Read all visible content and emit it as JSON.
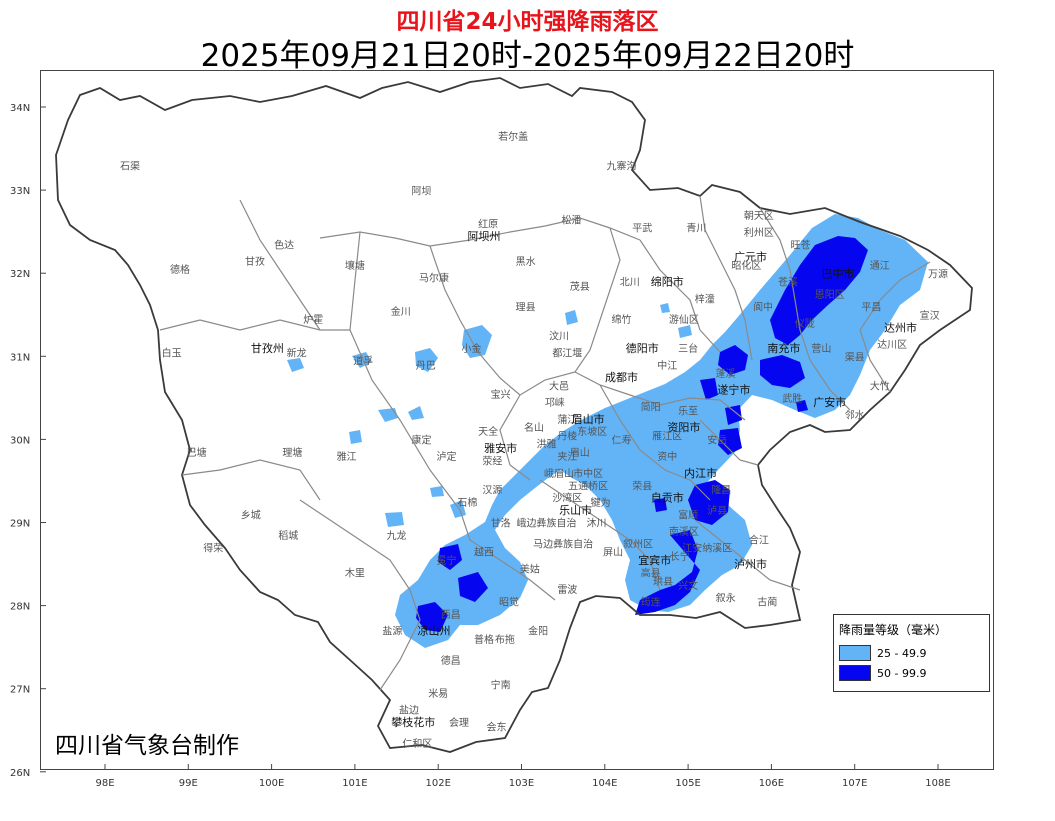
{
  "title": "四川省24小时强降雨落区",
  "period": "2025年09月21日20时-2025年09月22日20时",
  "producer": "四川省气象台制作",
  "colors": {
    "title": "#e8141c",
    "rain_25_49": "#63b4f7",
    "rain_50_99": "#0505ef",
    "boundary_province": "#3a3a3a",
    "boundary_county": "#8a8a8a",
    "boundary_city": "#333333"
  },
  "legend": {
    "title": "降雨量等级（毫米）",
    "items": [
      {
        "label": "25 - 49.9",
        "color": "#63b4f7"
      },
      {
        "label": "50 - 99.9",
        "color": "#0505ef"
      }
    ]
  },
  "axes": {
    "lat_ticks": [
      "34N",
      "33N",
      "32N",
      "31N",
      "30N",
      "29N",
      "28N",
      "27N",
      "26N"
    ],
    "lon_ticks": [
      "98E",
      "99E",
      "100E",
      "101E",
      "102E",
      "103E",
      "104E",
      "105E",
      "106E",
      "107E",
      "108E"
    ]
  },
  "places": [
    {
      "name": "若尔盖",
      "lon": 102.9,
      "lat": 33.6,
      "city": false
    },
    {
      "name": "九寨沟",
      "lon": 104.2,
      "lat": 33.25,
      "city": false
    },
    {
      "name": "石渠",
      "lon": 98.3,
      "lat": 33.25,
      "city": false
    },
    {
      "name": "阿坝",
      "lon": 101.8,
      "lat": 32.95,
      "city": false
    },
    {
      "name": "红原",
      "lon": 102.6,
      "lat": 32.55,
      "city": false
    },
    {
      "name": "松潘",
      "lon": 103.6,
      "lat": 32.6,
      "city": false
    },
    {
      "name": "平武",
      "lon": 104.45,
      "lat": 32.5,
      "city": false
    },
    {
      "name": "青川",
      "lon": 105.1,
      "lat": 32.5,
      "city": false
    },
    {
      "name": "朝天区",
      "lon": 105.85,
      "lat": 32.65,
      "city": false
    },
    {
      "name": "利州区",
      "lon": 105.85,
      "lat": 32.45,
      "city": false
    },
    {
      "name": "阿坝州",
      "lon": 102.55,
      "lat": 32.4,
      "city": true
    },
    {
      "name": "色达",
      "lon": 100.15,
      "lat": 32.3,
      "city": false
    },
    {
      "name": "德格",
      "lon": 98.9,
      "lat": 32.0,
      "city": false
    },
    {
      "name": "甘孜",
      "lon": 99.8,
      "lat": 32.1,
      "city": false
    },
    {
      "name": "壤塘",
      "lon": 101.0,
      "lat": 32.05,
      "city": false
    },
    {
      "name": "黑水",
      "lon": 103.05,
      "lat": 32.1,
      "city": false
    },
    {
      "name": "马尔康",
      "lon": 101.95,
      "lat": 31.9,
      "city": false
    },
    {
      "name": "广元市",
      "lon": 105.75,
      "lat": 32.15,
      "city": true
    },
    {
      "name": "昭化区",
      "lon": 105.7,
      "lat": 32.05,
      "city": false
    },
    {
      "name": "旺苍",
      "lon": 106.35,
      "lat": 32.3,
      "city": false
    },
    {
      "name": "巴中市",
      "lon": 106.8,
      "lat": 31.95,
      "city": true
    },
    {
      "name": "通江",
      "lon": 107.3,
      "lat": 32.05,
      "city": false
    },
    {
      "name": "万源",
      "lon": 108.0,
      "lat": 31.95,
      "city": false
    },
    {
      "name": "茂县",
      "lon": 103.7,
      "lat": 31.8,
      "city": false
    },
    {
      "name": "北川",
      "lon": 104.3,
      "lat": 31.85,
      "city": false
    },
    {
      "name": "绵阳市",
      "lon": 104.75,
      "lat": 31.85,
      "city": true
    },
    {
      "name": "苍溪",
      "lon": 106.2,
      "lat": 31.85,
      "city": false
    },
    {
      "name": "恩阳区",
      "lon": 106.7,
      "lat": 31.7,
      "city": false
    },
    {
      "name": "梓潼",
      "lon": 105.2,
      "lat": 31.65,
      "city": false
    },
    {
      "name": "金川",
      "lon": 101.55,
      "lat": 31.5,
      "city": false
    },
    {
      "name": "理县",
      "lon": 103.05,
      "lat": 31.55,
      "city": false
    },
    {
      "name": "平昌",
      "lon": 107.2,
      "lat": 31.55,
      "city": false
    },
    {
      "name": "宣汉",
      "lon": 107.9,
      "lat": 31.45,
      "city": false
    },
    {
      "name": "炉霍",
      "lon": 100.5,
      "lat": 31.4,
      "city": false
    },
    {
      "name": "绵竹",
      "lon": 104.2,
      "lat": 31.4,
      "city": false
    },
    {
      "name": "游仙区",
      "lon": 104.95,
      "lat": 31.4,
      "city": false
    },
    {
      "name": "阆中",
      "lon": 105.9,
      "lat": 31.55,
      "city": false
    },
    {
      "name": "仪陇",
      "lon": 106.4,
      "lat": 31.35,
      "city": false
    },
    {
      "name": "达州市",
      "lon": 107.55,
      "lat": 31.3,
      "city": true
    },
    {
      "name": "小金",
      "lon": 102.4,
      "lat": 31.05,
      "city": false
    },
    {
      "name": "汶川",
      "lon": 103.45,
      "lat": 31.2,
      "city": false
    },
    {
      "name": "德阳市",
      "lon": 104.45,
      "lat": 31.05,
      "city": true
    },
    {
      "name": "三台",
      "lon": 105.0,
      "lat": 31.05,
      "city": false
    },
    {
      "name": "南充市",
      "lon": 106.15,
      "lat": 31.05,
      "city": true
    },
    {
      "name": "达川区",
      "lon": 107.45,
      "lat": 31.1,
      "city": false
    },
    {
      "name": "白玉",
      "lon": 98.8,
      "lat": 31.0,
      "city": false
    },
    {
      "name": "甘孜州",
      "lon": 99.95,
      "lat": 31.05,
      "city": true
    },
    {
      "name": "新龙",
      "lon": 100.3,
      "lat": 31.0,
      "city": false
    },
    {
      "name": "道孚",
      "lon": 101.1,
      "lat": 30.9,
      "city": false
    },
    {
      "name": "丹巴",
      "lon": 101.85,
      "lat": 30.85,
      "city": false
    },
    {
      "name": "都江堰",
      "lon": 103.55,
      "lat": 31.0,
      "city": false
    },
    {
      "name": "中江",
      "lon": 104.75,
      "lat": 30.85,
      "city": false
    },
    {
      "name": "蓬溪",
      "lon": 105.45,
      "lat": 30.75,
      "city": false
    },
    {
      "name": "营山",
      "lon": 106.6,
      "lat": 31.05,
      "city": false
    },
    {
      "name": "渠县",
      "lon": 107.0,
      "lat": 30.95,
      "city": false
    },
    {
      "name": "大竹",
      "lon": 107.3,
      "lat": 30.6,
      "city": false
    },
    {
      "name": "成都市",
      "lon": 104.2,
      "lat": 30.7,
      "city": true
    },
    {
      "name": "大邑",
      "lon": 103.45,
      "lat": 30.6,
      "city": false
    },
    {
      "name": "遂宁市",
      "lon": 105.55,
      "lat": 30.55,
      "city": true
    },
    {
      "name": "武胜",
      "lon": 106.25,
      "lat": 30.45,
      "city": false
    },
    {
      "name": "宝兴",
      "lon": 102.75,
      "lat": 30.5,
      "city": false
    },
    {
      "name": "广安市",
      "lon": 106.7,
      "lat": 30.4,
      "city": true
    },
    {
      "name": "邻水",
      "lon": 107.0,
      "lat": 30.25,
      "city": false
    },
    {
      "name": "邛崃",
      "lon": 103.4,
      "lat": 30.4,
      "city": false
    },
    {
      "name": "蒲江",
      "lon": 103.55,
      "lat": 30.2,
      "city": false
    },
    {
      "name": "简阳",
      "lon": 104.55,
      "lat": 30.35,
      "city": false
    },
    {
      "name": "乐至",
      "lon": 105.0,
      "lat": 30.3,
      "city": false
    },
    {
      "name": "名山",
      "lon": 103.15,
      "lat": 30.1,
      "city": false
    },
    {
      "name": "丹棱",
      "lon": 103.55,
      "lat": 30.0,
      "city": false
    },
    {
      "name": "东坡区",
      "lon": 103.85,
      "lat": 30.05,
      "city": false
    },
    {
      "name": "眉山市",
      "lon": 103.8,
      "lat": 30.2,
      "city": true
    },
    {
      "name": "仁寿",
      "lon": 104.2,
      "lat": 29.95,
      "city": false
    },
    {
      "name": "资阳市",
      "lon": 104.95,
      "lat": 30.1,
      "city": true
    },
    {
      "name": "雁江区",
      "lon": 104.75,
      "lat": 30.0,
      "city": false
    },
    {
      "name": "安岳",
      "lon": 105.35,
      "lat": 29.95,
      "city": false
    },
    {
      "name": "康定",
      "lon": 101.8,
      "lat": 29.95,
      "city": false
    },
    {
      "name": "天全",
      "lon": 102.6,
      "lat": 30.05,
      "city": false
    },
    {
      "name": "雅安市",
      "lon": 102.75,
      "lat": 29.85,
      "city": true
    },
    {
      "name": "荥经",
      "lon": 102.65,
      "lat": 29.7,
      "city": false
    },
    {
      "name": "洪雅",
      "lon": 103.3,
      "lat": 29.9,
      "city": false
    },
    {
      "name": "眉山",
      "lon": 103.7,
      "lat": 29.8,
      "city": false
    },
    {
      "name": "巴塘",
      "lon": 99.1,
      "lat": 29.8,
      "city": false
    },
    {
      "name": "理塘",
      "lon": 100.25,
      "lat": 29.8,
      "city": false
    },
    {
      "name": "雅江",
      "lon": 100.9,
      "lat": 29.75,
      "city": false
    },
    {
      "name": "泸定",
      "lon": 102.1,
      "lat": 29.75,
      "city": false
    },
    {
      "name": "资中",
      "lon": 104.75,
      "lat": 29.75,
      "city": false
    },
    {
      "name": "内江市",
      "lon": 105.15,
      "lat": 29.55,
      "city": true
    },
    {
      "name": "隆昌",
      "lon": 105.4,
      "lat": 29.35,
      "city": false
    },
    {
      "name": "汉源",
      "lon": 102.65,
      "lat": 29.35,
      "city": false
    },
    {
      "name": "峨眉山",
      "lon": 103.45,
      "lat": 29.55,
      "city": false
    },
    {
      "name": "市中区",
      "lon": 103.8,
      "lat": 29.55,
      "city": false
    },
    {
      "name": "夹江",
      "lon": 103.55,
      "lat": 29.75,
      "city": false
    },
    {
      "name": "沙湾区",
      "lon": 103.55,
      "lat": 29.25,
      "city": false
    },
    {
      "name": "五通桥区",
      "lon": 103.8,
      "lat": 29.4,
      "city": false
    },
    {
      "name": "乐山市",
      "lon": 103.65,
      "lat": 29.1,
      "city": true
    },
    {
      "name": "犍为",
      "lon": 103.95,
      "lat": 29.2,
      "city": false
    },
    {
      "name": "自贡市",
      "lon": 104.75,
      "lat": 29.25,
      "city": true
    },
    {
      "name": "荣县",
      "lon": 104.45,
      "lat": 29.4,
      "city": false
    },
    {
      "name": "富顺",
      "lon": 105.0,
      "lat": 29.05,
      "city": false
    },
    {
      "name": "泸县",
      "lon": 105.35,
      "lat": 29.1,
      "city": false
    },
    {
      "name": "石棉",
      "lon": 102.35,
      "lat": 29.2,
      "city": false
    },
    {
      "name": "甘洛",
      "lon": 102.75,
      "lat": 28.95,
      "city": false
    },
    {
      "name": "峨边彝族自治",
      "lon": 103.3,
      "lat": 28.95,
      "city": false
    },
    {
      "name": "沐川",
      "lon": 103.9,
      "lat": 28.95,
      "city": false
    },
    {
      "name": "乡城",
      "lon": 99.75,
      "lat": 29.05,
      "city": false
    },
    {
      "name": "稻城",
      "lon": 100.2,
      "lat": 28.8,
      "city": false
    },
    {
      "name": "九龙",
      "lon": 101.5,
      "lat": 28.8,
      "city": false
    },
    {
      "name": "得荣",
      "lon": 99.3,
      "lat": 28.65,
      "city": false
    },
    {
      "name": "马边彝族自治",
      "lon": 103.5,
      "lat": 28.7,
      "city": false
    },
    {
      "name": "叙州区",
      "lon": 104.4,
      "lat": 28.7,
      "city": false
    },
    {
      "name": "南溪区",
      "lon": 104.95,
      "lat": 28.85,
      "city": false
    },
    {
      "name": "江安",
      "lon": 105.05,
      "lat": 28.65,
      "city": false
    },
    {
      "name": "纳溪区",
      "lon": 105.35,
      "lat": 28.65,
      "city": false
    },
    {
      "name": "合江",
      "lon": 105.85,
      "lat": 28.75,
      "city": false
    },
    {
      "name": "宜宾市",
      "lon": 104.6,
      "lat": 28.5,
      "city": true
    },
    {
      "name": "泸州市",
      "lon": 105.75,
      "lat": 28.45,
      "city": true
    },
    {
      "name": "越西",
      "lon": 102.55,
      "lat": 28.6,
      "city": false
    },
    {
      "name": "冕宁",
      "lon": 102.1,
      "lat": 28.5,
      "city": false
    },
    {
      "name": "美姑",
      "lon": 103.1,
      "lat": 28.4,
      "city": false
    },
    {
      "name": "屏山",
      "lon": 104.1,
      "lat": 28.6,
      "city": false
    },
    {
      "name": "长宁",
      "lon": 104.9,
      "lat": 28.55,
      "city": false
    },
    {
      "name": "木里",
      "lon": 101.0,
      "lat": 28.35,
      "city": false
    },
    {
      "name": "昭觉",
      "lon": 102.85,
      "lat": 28.0,
      "city": false
    },
    {
      "name": "雷波",
      "lon": 103.55,
      "lat": 28.15,
      "city": false
    },
    {
      "name": "高县",
      "lon": 104.55,
      "lat": 28.35,
      "city": false
    },
    {
      "name": "珙县",
      "lon": 104.7,
      "lat": 28.25,
      "city": false
    },
    {
      "name": "兴文",
      "lon": 105.0,
      "lat": 28.2,
      "city": false
    },
    {
      "name": "叙永",
      "lon": 105.45,
      "lat": 28.05,
      "city": false
    },
    {
      "name": "古蔺",
      "lon": 105.95,
      "lat": 28.0,
      "city": false
    },
    {
      "name": "筠连",
      "lon": 104.55,
      "lat": 28.0,
      "city": false
    },
    {
      "name": "西昌",
      "lon": 102.15,
      "lat": 27.85,
      "city": false
    },
    {
      "name": "凉山州",
      "lon": 101.95,
      "lat": 27.65,
      "city": true
    },
    {
      "name": "盐源",
      "lon": 101.45,
      "lat": 27.65,
      "city": false
    },
    {
      "name": "金阳",
      "lon": 103.2,
      "lat": 27.65,
      "city": false
    },
    {
      "name": "普格",
      "lon": 102.55,
      "lat": 27.55,
      "city": false
    },
    {
      "name": "布拖",
      "lon": 102.8,
      "lat": 27.55,
      "city": false
    },
    {
      "name": "德昌",
      "lon": 102.15,
      "lat": 27.3,
      "city": false
    },
    {
      "name": "宁南",
      "lon": 102.75,
      "lat": 27.0,
      "city": false
    },
    {
      "name": "米易",
      "lon": 102.0,
      "lat": 26.9,
      "city": false
    },
    {
      "name": "盐边",
      "lon": 101.65,
      "lat": 26.7,
      "city": false
    },
    {
      "name": "攀枝花市",
      "lon": 101.7,
      "lat": 26.55,
      "city": true
    },
    {
      "name": "会理",
      "lon": 102.25,
      "lat": 26.55,
      "city": false
    },
    {
      "name": "会东",
      "lon": 102.7,
      "lat": 26.5,
      "city": false
    },
    {
      "name": "仁和区",
      "lon": 101.75,
      "lat": 26.3,
      "city": false
    }
  ]
}
